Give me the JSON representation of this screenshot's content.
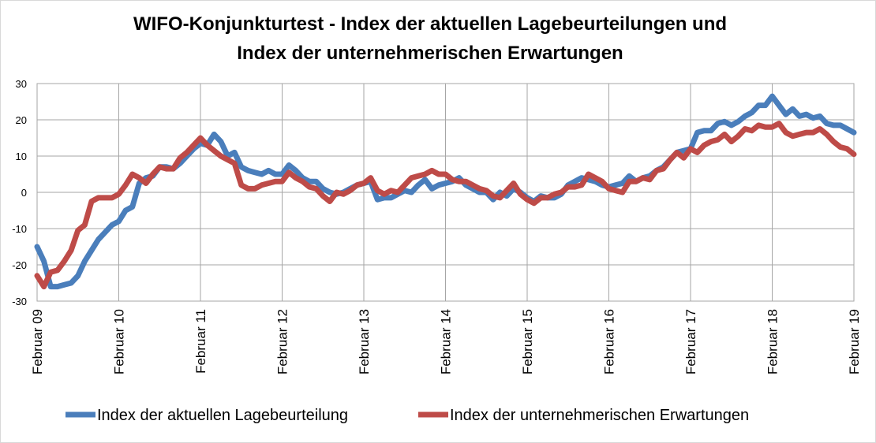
{
  "chart_data": {
    "type": "line",
    "title": "WIFO-Konjunkturtest - Index der aktuellen Lagebeurteilungen und",
    "subtitle": "Index der unternehmerischen Erwartungen",
    "categories": [
      "Februar 09",
      null,
      null,
      null,
      null,
      null,
      null,
      null,
      null,
      null,
      null,
      null,
      "Februar 10",
      null,
      null,
      null,
      null,
      null,
      null,
      null,
      null,
      null,
      null,
      null,
      "Februar 11",
      null,
      null,
      null,
      null,
      null,
      null,
      null,
      null,
      null,
      null,
      null,
      "Februar 12",
      null,
      null,
      null,
      null,
      null,
      null,
      null,
      null,
      null,
      null,
      null,
      "Februar 13",
      null,
      null,
      null,
      null,
      null,
      null,
      null,
      null,
      null,
      null,
      null,
      "Februar 14",
      null,
      null,
      null,
      null,
      null,
      null,
      null,
      null,
      null,
      null,
      null,
      "Februar 15",
      null,
      null,
      null,
      null,
      null,
      null,
      null,
      null,
      null,
      null,
      null,
      "Februar 16",
      null,
      null,
      null,
      null,
      null,
      null,
      null,
      null,
      null,
      null,
      null,
      "Februar 17",
      null,
      null,
      null,
      null,
      null,
      null,
      null,
      null,
      null,
      null,
      null,
      "Februar 18",
      null,
      null,
      null,
      null,
      null,
      null,
      null,
      null,
      null,
      null,
      null,
      "Februar 19"
    ],
    "series": [
      {
        "name": "Index der aktuellen Lagebeurteilung",
        "color": "#4a7ebb",
        "values": [
          -15,
          -19,
          -26,
          -26,
          -25.5,
          -25,
          -23,
          -19,
          -16,
          -13,
          -11,
          -9,
          -8,
          -5,
          -4,
          2.5,
          4,
          4.5,
          7,
          7,
          6.5,
          8,
          10,
          12,
          13.5,
          13,
          16,
          14,
          10,
          11,
          7,
          6,
          5.5,
          5,
          6,
          5,
          5,
          7.5,
          6,
          4,
          3,
          3,
          1,
          0,
          -0.5,
          0,
          1,
          2,
          2.5,
          3,
          -2,
          -1.5,
          -1.5,
          -0.5,
          0.5,
          0,
          2,
          3.5,
          1,
          2,
          2.5,
          3,
          4,
          2,
          1,
          0,
          0,
          -2,
          0,
          -1,
          1,
          0,
          -1.5,
          -2.5,
          -1,
          -1.5,
          -1.5,
          -0.5,
          2,
          3,
          4,
          3.5,
          3,
          2,
          1.5,
          2,
          2.5,
          4.5,
          3,
          4,
          4.5,
          6,
          7,
          9,
          11,
          11.5,
          12,
          16.5,
          17,
          17,
          19,
          19.5,
          18.5,
          19.5,
          21,
          22,
          24,
          24,
          26.5,
          24,
          21.5,
          23,
          21,
          21.5,
          20.5,
          21,
          19,
          18.5,
          18.5,
          17.5,
          16.5
        ]
      },
      {
        "name": "Index der unternehmerischen Erwartungen",
        "color": "#be4b48",
        "values": [
          -23,
          -26,
          -22,
          -21.5,
          -19,
          -16,
          -10.5,
          -9,
          -2.5,
          -1.5,
          -1.5,
          -1.5,
          -0.5,
          2,
          5,
          4,
          2.5,
          5,
          7,
          6.5,
          6.5,
          9.5,
          11,
          13,
          15,
          13,
          11.5,
          10,
          9,
          8,
          2,
          1,
          1,
          2,
          2.5,
          3,
          3,
          5.5,
          4,
          3,
          1.5,
          1,
          -1,
          -2.5,
          0,
          -0.5,
          0.5,
          2,
          2.5,
          4,
          0.5,
          -0.5,
          0.5,
          0,
          2,
          4,
          4.5,
          5,
          6,
          5,
          5,
          3.5,
          3,
          3,
          2,
          1,
          0.5,
          -1,
          -1.5,
          0.5,
          2.5,
          -0.5,
          -2,
          -3,
          -1.5,
          -1.5,
          -0.5,
          0,
          1.5,
          1.5,
          2,
          5,
          4,
          3,
          1,
          0.5,
          0,
          3,
          3,
          4,
          3.5,
          6,
          6.5,
          9,
          11,
          9.5,
          12,
          11,
          13,
          14,
          14.5,
          16,
          14,
          15.5,
          17.5,
          17,
          18.5,
          18,
          18,
          19,
          16.5,
          15.5,
          16,
          16.5,
          16.5,
          17.5,
          16,
          14,
          12.5,
          12,
          10.5
        ]
      }
    ],
    "ylim": [
      -30,
      30
    ],
    "yticks": [
      -30,
      -20,
      -10,
      0,
      10,
      20,
      30
    ],
    "grid": true
  }
}
